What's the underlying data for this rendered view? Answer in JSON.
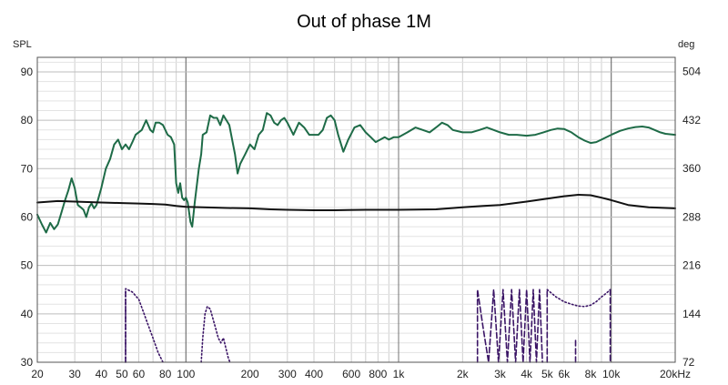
{
  "chart_data": {
    "type": "line",
    "title": "Out of phase 1M",
    "ylabel": "SPL",
    "y2label": "deg",
    "xscale": "log",
    "xlim": [
      20,
      20000
    ],
    "ylim": [
      30,
      93
    ],
    "y2lim": [
      72,
      525
    ],
    "grid": true,
    "x_ticks": [
      {
        "v": 20,
        "label": "20"
      },
      {
        "v": 30,
        "label": "30"
      },
      {
        "v": 40,
        "label": "40"
      },
      {
        "v": 50,
        "label": "50"
      },
      {
        "v": 60,
        "label": "60"
      },
      {
        "v": 80,
        "label": "80"
      },
      {
        "v": 100,
        "label": "100"
      },
      {
        "v": 200,
        "label": "200"
      },
      {
        "v": 300,
        "label": "300"
      },
      {
        "v": 400,
        "label": "400"
      },
      {
        "v": 600,
        "label": "600"
      },
      {
        "v": 800,
        "label": "800"
      },
      {
        "v": 1000,
        "label": "1k"
      },
      {
        "v": 2000,
        "label": "2k"
      },
      {
        "v": 3000,
        "label": "3k"
      },
      {
        "v": 4000,
        "label": "4k"
      },
      {
        "v": 5000,
        "label": "5k"
      },
      {
        "v": 6000,
        "label": "6k"
      },
      {
        "v": 8000,
        "label": "8k"
      },
      {
        "v": 10000,
        "label": "10k"
      },
      {
        "v": 20000,
        "label": "20kHz"
      }
    ],
    "y_ticks": [
      "30",
      "40",
      "50",
      "60",
      "70",
      "80",
      "90"
    ],
    "y2_ticks": [
      "72",
      "144",
      "216",
      "288",
      "360",
      "432",
      "504"
    ],
    "series": [
      {
        "color": "#1e6b47",
        "style": "solid",
        "points": [
          [
            20,
            60.5
          ],
          [
            21,
            58.5
          ],
          [
            22,
            56.8
          ],
          [
            23,
            58.8
          ],
          [
            24,
            57.5
          ],
          [
            25,
            58.5
          ],
          [
            26,
            61
          ],
          [
            27,
            63.5
          ],
          [
            28,
            65.5
          ],
          [
            29,
            68
          ],
          [
            30,
            66
          ],
          [
            31,
            62.5
          ],
          [
            32,
            62
          ],
          [
            33,
            61.5
          ],
          [
            34,
            60
          ],
          [
            35,
            62
          ],
          [
            36,
            62.8
          ],
          [
            37,
            61.8
          ],
          [
            38,
            62.5
          ],
          [
            40,
            66
          ],
          [
            42,
            70
          ],
          [
            44,
            72
          ],
          [
            46,
            75
          ],
          [
            48,
            76
          ],
          [
            50,
            74
          ],
          [
            52,
            75
          ],
          [
            54,
            74
          ],
          [
            56,
            75.5
          ],
          [
            58,
            77
          ],
          [
            62,
            78
          ],
          [
            65,
            80
          ],
          [
            68,
            78
          ],
          [
            70,
            77.5
          ],
          [
            72,
            79.5
          ],
          [
            75,
            79.5
          ],
          [
            78,
            79
          ],
          [
            82,
            77
          ],
          [
            85,
            76.5
          ],
          [
            88,
            75
          ],
          [
            90,
            67
          ],
          [
            92,
            65
          ],
          [
            94,
            67
          ],
          [
            96,
            64
          ],
          [
            98,
            63.5
          ],
          [
            100,
            64
          ],
          [
            102,
            63
          ],
          [
            105,
            59
          ],
          [
            107,
            58
          ],
          [
            110,
            63
          ],
          [
            115,
            70
          ],
          [
            118,
            73
          ],
          [
            120,
            77
          ],
          [
            125,
            77.5
          ],
          [
            130,
            81
          ],
          [
            135,
            80.5
          ],
          [
            140,
            80.5
          ],
          [
            145,
            79
          ],
          [
            150,
            81
          ],
          [
            155,
            80
          ],
          [
            160,
            79
          ],
          [
            165,
            76
          ],
          [
            170,
            73
          ],
          [
            175,
            69
          ],
          [
            180,
            71
          ],
          [
            190,
            73
          ],
          [
            200,
            75
          ],
          [
            210,
            74
          ],
          [
            220,
            77
          ],
          [
            230,
            78
          ],
          [
            240,
            81.5
          ],
          [
            250,
            81
          ],
          [
            260,
            79.5
          ],
          [
            270,
            79
          ],
          [
            280,
            80
          ],
          [
            290,
            80.5
          ],
          [
            300,
            79.5
          ],
          [
            320,
            77
          ],
          [
            340,
            79.5
          ],
          [
            360,
            78.5
          ],
          [
            380,
            77
          ],
          [
            400,
            77
          ],
          [
            420,
            77
          ],
          [
            440,
            78
          ],
          [
            460,
            80.5
          ],
          [
            480,
            81
          ],
          [
            500,
            80
          ],
          [
            520,
            77
          ],
          [
            550,
            73.5
          ],
          [
            580,
            76
          ],
          [
            620,
            78.5
          ],
          [
            660,
            79
          ],
          [
            700,
            77.5
          ],
          [
            740,
            76.5
          ],
          [
            780,
            75.5
          ],
          [
            820,
            76
          ],
          [
            860,
            76.5
          ],
          [
            900,
            76
          ],
          [
            950,
            76.5
          ],
          [
            1000,
            76.5
          ],
          [
            1100,
            77.5
          ],
          [
            1200,
            78.5
          ],
          [
            1300,
            78
          ],
          [
            1400,
            77.5
          ],
          [
            1500,
            78.5
          ],
          [
            1600,
            79.5
          ],
          [
            1700,
            79
          ],
          [
            1800,
            78
          ],
          [
            2000,
            77.5
          ],
          [
            2200,
            77.5
          ],
          [
            2400,
            78
          ],
          [
            2600,
            78.5
          ],
          [
            2800,
            78
          ],
          [
            3000,
            77.5
          ],
          [
            3300,
            77
          ],
          [
            3600,
            77
          ],
          [
            4000,
            76.8
          ],
          [
            4400,
            77
          ],
          [
            4800,
            77.5
          ],
          [
            5200,
            78
          ],
          [
            5600,
            78.3
          ],
          [
            6000,
            78.2
          ],
          [
            6500,
            77.5
          ],
          [
            7000,
            76.5
          ],
          [
            7500,
            75.8
          ],
          [
            8000,
            75.3
          ],
          [
            8500,
            75.5
          ],
          [
            9000,
            76
          ],
          [
            10000,
            77
          ],
          [
            11000,
            77.8
          ],
          [
            12000,
            78.3
          ],
          [
            13000,
            78.6
          ],
          [
            14000,
            78.7
          ],
          [
            15000,
            78.5
          ],
          [
            16000,
            78
          ],
          [
            17000,
            77.5
          ],
          [
            18000,
            77.2
          ],
          [
            20000,
            77
          ]
        ]
      },
      {
        "color": "#111111",
        "style": "solid",
        "points": [
          [
            20,
            63
          ],
          [
            25,
            63.3
          ],
          [
            30,
            63.2
          ],
          [
            40,
            63
          ],
          [
            50,
            62.9
          ],
          [
            60,
            62.8
          ],
          [
            70,
            62.7
          ],
          [
            80,
            62.6
          ],
          [
            90,
            62.3
          ],
          [
            100,
            62.1
          ],
          [
            120,
            62
          ],
          [
            150,
            61.9
          ],
          [
            200,
            61.8
          ],
          [
            250,
            61.6
          ],
          [
            300,
            61.5
          ],
          [
            400,
            61.4
          ],
          [
            500,
            61.4
          ],
          [
            700,
            61.5
          ],
          [
            1000,
            61.5
          ],
          [
            1500,
            61.6
          ],
          [
            2000,
            62
          ],
          [
            2500,
            62.3
          ],
          [
            3000,
            62.5
          ],
          [
            4000,
            63.2
          ],
          [
            5000,
            63.8
          ],
          [
            6000,
            64.3
          ],
          [
            7000,
            64.6
          ],
          [
            8000,
            64.5
          ],
          [
            9000,
            64
          ],
          [
            10000,
            63.5
          ],
          [
            12000,
            62.5
          ],
          [
            15000,
            62
          ],
          [
            20000,
            61.8
          ]
        ]
      },
      {
        "color": "#3b1566",
        "style": "dotted",
        "points": [
          [
            52,
            30
          ],
          [
            52,
            45.2
          ],
          [
            56,
            44.5
          ],
          [
            60,
            43
          ],
          [
            63,
            40.5
          ],
          [
            66,
            38
          ],
          [
            70,
            35
          ],
          [
            74,
            32
          ],
          [
            78,
            30
          ]
        ]
      },
      {
        "color": "#3b1566",
        "style": "dotted",
        "points": [
          [
            118,
            30
          ],
          [
            120,
            35
          ],
          [
            123,
            40
          ],
          [
            126,
            41.5
          ],
          [
            130,
            41
          ],
          [
            134,
            39
          ],
          [
            138,
            37
          ],
          [
            142,
            35
          ],
          [
            146,
            34
          ],
          [
            150,
            35
          ],
          [
            154,
            33
          ],
          [
            158,
            31
          ],
          [
            161,
            30
          ]
        ]
      },
      {
        "color": "#3b1566",
        "style": "dashed",
        "points": [
          [
            52,
            30
          ],
          [
            52,
            45.2
          ]
        ]
      },
      {
        "color": "#3b1566",
        "style": "dashed",
        "points": [
          [
            2350,
            30
          ],
          [
            2350,
            45
          ],
          [
            2500,
            37
          ],
          [
            2650,
            30
          ],
          [
            2800,
            45
          ],
          [
            2950,
            30
          ],
          [
            3100,
            45
          ],
          [
            3250,
            30
          ],
          [
            3400,
            45
          ],
          [
            3550,
            30
          ],
          [
            3700,
            45
          ],
          [
            3850,
            30
          ],
          [
            4000,
            45
          ],
          [
            4150,
            30
          ],
          [
            4300,
            45
          ],
          [
            4450,
            30
          ],
          [
            4600,
            45
          ],
          [
            4750,
            30
          ]
        ]
      },
      {
        "color": "#3b1566",
        "style": "dashed",
        "points": [
          [
            5000,
            30
          ],
          [
            5000,
            45
          ]
        ]
      },
      {
        "color": "#3b1566",
        "style": "dotted",
        "points": [
          [
            5000,
            45
          ],
          [
            5500,
            43.5
          ],
          [
            6000,
            42.5
          ],
          [
            6500,
            42
          ],
          [
            7000,
            41.6
          ],
          [
            7500,
            41.5
          ],
          [
            8000,
            41.8
          ],
          [
            8500,
            42.5
          ],
          [
            9000,
            43.5
          ],
          [
            9500,
            44.3
          ],
          [
            9900,
            45
          ]
        ]
      },
      {
        "color": "#3b1566",
        "style": "dashed",
        "points": [
          [
            9900,
            45
          ],
          [
            9900,
            30
          ]
        ]
      },
      {
        "color": "#3b1566",
        "style": "dashed",
        "points": [
          [
            6800,
            30
          ],
          [
            6800,
            35
          ]
        ]
      }
    ]
  }
}
